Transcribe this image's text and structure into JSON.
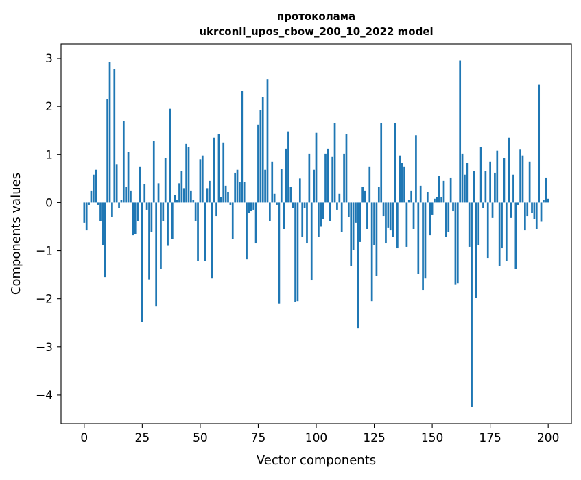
{
  "chart_data": {
    "type": "bar",
    "title_line1": "протоколама",
    "title_line2": "ukrconll_upos_cbow_200_10_2022 model",
    "xlabel": "Vector components",
    "ylabel": "Components values",
    "xlim": [
      -10,
      210
    ],
    "ylim": [
      -4.6,
      3.3
    ],
    "xticks": [
      0,
      25,
      50,
      75,
      100,
      125,
      150,
      175,
      200
    ],
    "yticks": [
      3,
      2,
      1,
      0,
      -1,
      -2,
      -3,
      -4
    ],
    "ytick_labels": [
      "3",
      "2",
      "1",
      "0",
      "−1",
      "−2",
      "−3",
      "−4"
    ],
    "bar_color": "#1f77b4",
    "grid": false,
    "values": [
      -0.42,
      -0.58,
      -0.05,
      0.25,
      0.58,
      0.68,
      -0.05,
      -0.38,
      -0.88,
      -1.55,
      2.15,
      2.92,
      -0.3,
      2.78,
      0.8,
      -0.12,
      0.05,
      1.7,
      0.32,
      1.05,
      0.25,
      -0.68,
      -0.65,
      -0.38,
      0.75,
      -2.48,
      0.38,
      -0.15,
      -1.6,
      -0.62,
      1.28,
      -2.15,
      0.4,
      -1.38,
      -0.38,
      0.92,
      -0.9,
      1.95,
      -0.75,
      0.15,
      0.05,
      0.4,
      0.65,
      0.3,
      1.22,
      1.15,
      0.25,
      0.05,
      -0.38,
      -1.22,
      0.9,
      0.98,
      -1.22,
      0.3,
      0.45,
      -1.58,
      1.35,
      -0.28,
      1.42,
      0.12,
      1.25,
      0.35,
      0.22,
      -0.05,
      -0.75,
      0.62,
      0.68,
      0.42,
      2.32,
      0.42,
      -1.18,
      -0.22,
      -0.18,
      -0.15,
      -0.85,
      1.62,
      1.92,
      2.2,
      0.68,
      2.57,
      -0.38,
      0.85,
      0.18,
      -0.05,
      -2.1,
      0.7,
      -0.55,
      1.12,
      1.48,
      0.32,
      -0.12,
      -2.07,
      -2.05,
      0.5,
      -0.72,
      -0.12,
      -0.85,
      1.02,
      -1.62,
      0.68,
      1.45,
      -0.72,
      -0.5,
      -0.35,
      1.02,
      1.12,
      -0.38,
      0.95,
      1.65,
      -0.15,
      0.18,
      -0.62,
      1.02,
      1.42,
      -0.3,
      -1.32,
      -0.98,
      -0.42,
      -2.62,
      -0.82,
      0.32,
      0.25,
      -0.55,
      0.75,
      -2.05,
      -0.88,
      -1.52,
      0.32,
      1.65,
      -0.28,
      -0.85,
      -0.52,
      -0.58,
      -0.72,
      1.65,
      -0.95,
      0.98,
      0.82,
      0.75,
      -0.92,
      0.05,
      0.25,
      -0.55,
      1.4,
      -1.48,
      0.35,
      -1.82,
      -1.58,
      0.22,
      -0.68,
      -0.25,
      0.08,
      0.12,
      0.55,
      0.12,
      0.45,
      -0.72,
      -0.62,
      0.52,
      -0.18,
      -1.7,
      -1.68,
      2.95,
      1.02,
      0.58,
      0.82,
      -0.92,
      -4.25,
      0.65,
      -1.98,
      -0.88,
      1.15,
      -0.12,
      0.65,
      -1.15,
      0.85,
      -0.32,
      0.62,
      1.08,
      -1.32,
      -0.95,
      0.92,
      -1.22,
      1.35,
      -0.32,
      0.58,
      -1.38,
      -0.05,
      1.1,
      0.98,
      -0.58,
      -0.28,
      0.85,
      -0.22,
      -0.35,
      -0.55,
      2.45,
      -0.4,
      0.05,
      0.52,
      0.08
    ]
  }
}
